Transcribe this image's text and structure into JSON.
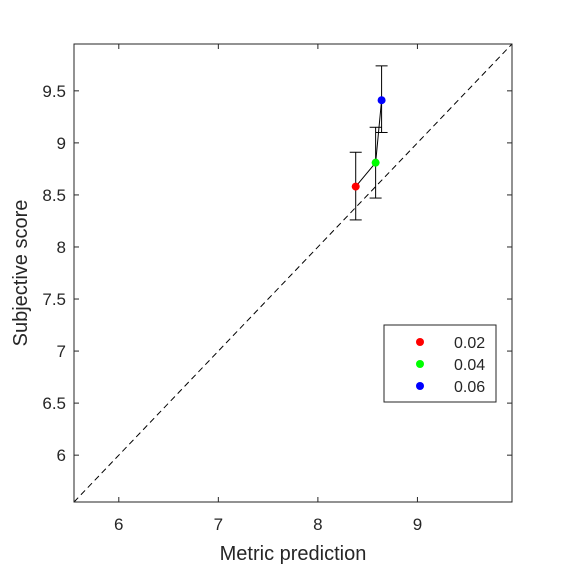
{
  "chart_data": {
    "type": "scatter",
    "title": "",
    "xlabel": "Metric prediction",
    "ylabel": "Subjective score",
    "xlim": [
      5.55,
      9.95
    ],
    "ylim": [
      5.55,
      9.95
    ],
    "xticks": [
      "6",
      "7",
      "8",
      "9"
    ],
    "yticks": [
      "6",
      "6.5",
      "7",
      "7.5",
      "8",
      "8.5",
      "9",
      "9.5"
    ],
    "xtick_values": [
      6,
      7,
      8,
      9
    ],
    "ytick_values": [
      6,
      6.5,
      7,
      7.5,
      8,
      8.5,
      9,
      9.5
    ],
    "grid": false,
    "legend_position": "right",
    "reference_line": {
      "style": "dashed",
      "x": [
        5.55,
        9.95
      ],
      "y": [
        5.55,
        9.95
      ]
    },
    "connect_points": true,
    "series": [
      {
        "name": "0.02",
        "color": "#ff0000",
        "x": 8.38,
        "y": 8.58,
        "err_low": 8.26,
        "err_high": 8.91
      },
      {
        "name": "0.04",
        "color": "#00ff00",
        "x": 8.58,
        "y": 8.81,
        "err_low": 8.47,
        "err_high": 9.15
      },
      {
        "name": "0.06",
        "color": "#0000ff",
        "x": 8.64,
        "y": 9.41,
        "err_low": 9.1,
        "err_high": 9.74
      }
    ]
  }
}
